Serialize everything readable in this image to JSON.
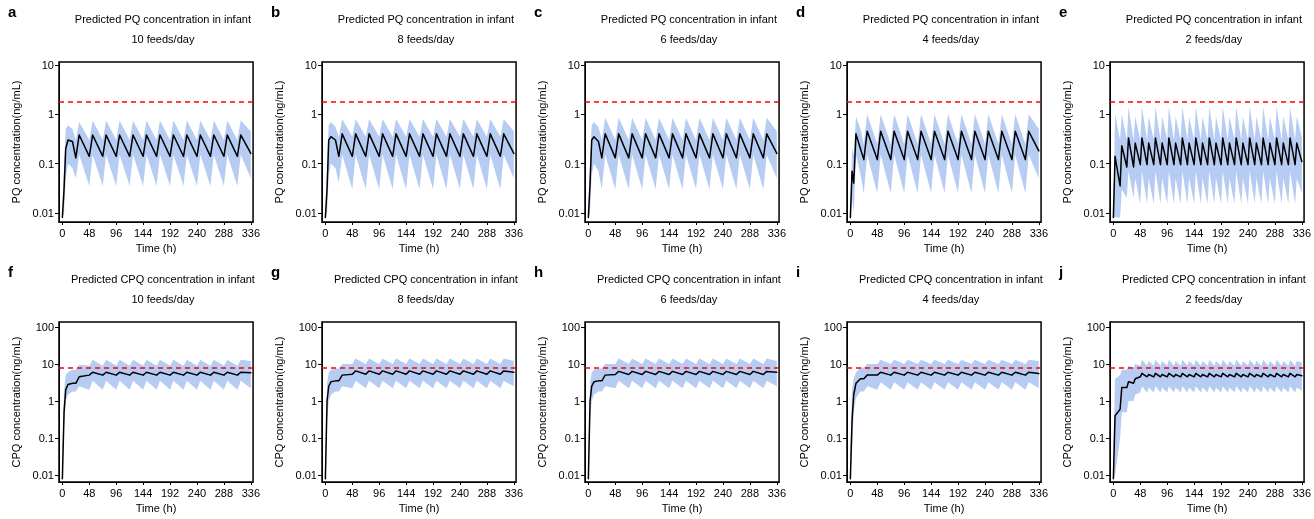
{
  "chart_data": [
    {
      "type": "line",
      "title": "Predicted PQ concentration in infant",
      "subtitle": "10 feeds/day",
      "xlabel": "Time (h)",
      "ylabel": "PQ concentration(ng/mL)",
      "annotations": [
        "a"
      ],
      "log": "y",
      "marker": "none",
      "xlim": [
        -6,
        340
      ],
      "xticks": [
        0,
        48,
        96,
        144,
        192,
        240,
        288,
        336
      ],
      "ylim": [
        0.0065,
        11.5
      ],
      "yticks": [
        0.01,
        0.1,
        1,
        10
      ],
      "ref_lines": [
        {
          "axis": "y",
          "value": 1.8,
          "color": "#ff0000",
          "line_style": "dashed"
        }
      ],
      "x": [
        0,
        3,
        6,
        10,
        18,
        24,
        30,
        48,
        54,
        72,
        78,
        96,
        102,
        120,
        126,
        144,
        150,
        168,
        174,
        192,
        198,
        216,
        222,
        240,
        246,
        264,
        270,
        288,
        294,
        312,
        318,
        336
      ],
      "series": [
        {
          "color": "#000000",
          "values": [
            0.008,
            0.03,
            0.2,
            0.3,
            0.28,
            0.13,
            0.38,
            0.14,
            0.38,
            0.14,
            0.38,
            0.14,
            0.38,
            0.14,
            0.38,
            0.14,
            0.38,
            0.14,
            0.38,
            0.14,
            0.38,
            0.14,
            0.38,
            0.14,
            0.38,
            0.14,
            0.38,
            0.14,
            0.38,
            0.14,
            0.38,
            0.16
          ],
          "upper": [
            0.01,
            0.1,
            0.5,
            0.6,
            0.5,
            0.3,
            0.7,
            0.3,
            0.75,
            0.3,
            0.75,
            0.3,
            0.75,
            0.3,
            0.75,
            0.3,
            0.75,
            0.3,
            0.75,
            0.3,
            0.75,
            0.3,
            0.75,
            0.3,
            0.75,
            0.3,
            0.75,
            0.3,
            0.75,
            0.3,
            0.75,
            0.45
          ],
          "lower": [
            0.008,
            0.01,
            0.05,
            0.1,
            0.08,
            0.05,
            0.15,
            0.035,
            0.15,
            0.035,
            0.15,
            0.035,
            0.15,
            0.035,
            0.15,
            0.035,
            0.15,
            0.035,
            0.15,
            0.035,
            0.15,
            0.035,
            0.15,
            0.035,
            0.15,
            0.035,
            0.15,
            0.035,
            0.15,
            0.035,
            0.15,
            0.05
          ]
        }
      ]
    },
    {
      "type": "line",
      "title": "Predicted PQ concentration in infant",
      "subtitle": "8 feeds/day",
      "xlabel": "Time (h)",
      "ylabel": "PQ concentration(ng/mL)",
      "annotations": [
        "b"
      ],
      "log": "y",
      "marker": "none",
      "xlim": [
        -6,
        340
      ],
      "xticks": [
        0,
        48,
        96,
        144,
        192,
        240,
        288,
        336
      ],
      "ylim": [
        0.0065,
        11.5
      ],
      "yticks": [
        0.01,
        0.1,
        1,
        10
      ],
      "ref_lines": [
        {
          "axis": "y",
          "value": 1.8,
          "color": "#ff0000",
          "line_style": "dashed"
        }
      ],
      "x": [
        0,
        3,
        6,
        10,
        18,
        24,
        30,
        48,
        54,
        72,
        78,
        96,
        102,
        120,
        126,
        144,
        150,
        168,
        174,
        192,
        198,
        216,
        222,
        240,
        246,
        264,
        270,
        288,
        294,
        312,
        318,
        336
      ],
      "series": [
        {
          "color": "#000000",
          "values": [
            0.008,
            0.03,
            0.3,
            0.35,
            0.3,
            0.14,
            0.4,
            0.14,
            0.4,
            0.14,
            0.4,
            0.14,
            0.4,
            0.14,
            0.4,
            0.14,
            0.4,
            0.14,
            0.4,
            0.14,
            0.4,
            0.14,
            0.4,
            0.14,
            0.4,
            0.14,
            0.4,
            0.14,
            0.4,
            0.14,
            0.4,
            0.16
          ],
          "upper": [
            0.01,
            0.1,
            0.6,
            0.7,
            0.55,
            0.35,
            0.8,
            0.35,
            0.8,
            0.35,
            0.8,
            0.35,
            0.8,
            0.35,
            0.8,
            0.35,
            0.8,
            0.35,
            0.8,
            0.35,
            0.8,
            0.35,
            0.8,
            0.35,
            0.8,
            0.35,
            0.8,
            0.35,
            0.8,
            0.35,
            0.8,
            0.45
          ],
          "lower": [
            0.008,
            0.01,
            0.06,
            0.1,
            0.08,
            0.04,
            0.15,
            0.03,
            0.15,
            0.03,
            0.15,
            0.03,
            0.15,
            0.03,
            0.15,
            0.03,
            0.15,
            0.03,
            0.15,
            0.03,
            0.15,
            0.03,
            0.15,
            0.03,
            0.15,
            0.03,
            0.15,
            0.03,
            0.15,
            0.03,
            0.15,
            0.05
          ]
        }
      ]
    },
    {
      "type": "line",
      "title": "Predicted PQ concentration in infant",
      "subtitle": "6 feeds/day",
      "xlabel": "Time (h)",
      "ylabel": "PQ concentration(ng/mL)",
      "annotations": [
        "c"
      ],
      "log": "y",
      "marker": "none",
      "xlim": [
        -6,
        340
      ],
      "xticks": [
        0,
        48,
        96,
        144,
        192,
        240,
        288,
        336
      ],
      "ylim": [
        0.0065,
        11.5
      ],
      "yticks": [
        0.01,
        0.1,
        1,
        10
      ],
      "ref_lines": [
        {
          "axis": "y",
          "value": 1.8,
          "color": "#ff0000",
          "line_style": "dashed"
        }
      ],
      "x": [
        0,
        3,
        6,
        10,
        18,
        24,
        30,
        48,
        54,
        72,
        78,
        96,
        102,
        120,
        126,
        144,
        150,
        168,
        174,
        192,
        198,
        216,
        222,
        240,
        246,
        264,
        270,
        288,
        294,
        312,
        318,
        336
      ],
      "series": [
        {
          "color": "#000000",
          "values": [
            0.008,
            0.04,
            0.3,
            0.35,
            0.28,
            0.13,
            0.4,
            0.13,
            0.4,
            0.13,
            0.4,
            0.13,
            0.4,
            0.13,
            0.4,
            0.13,
            0.4,
            0.13,
            0.4,
            0.13,
            0.4,
            0.13,
            0.4,
            0.13,
            0.4,
            0.13,
            0.4,
            0.13,
            0.4,
            0.13,
            0.4,
            0.16
          ],
          "upper": [
            0.01,
            0.12,
            0.6,
            0.7,
            0.55,
            0.3,
            0.85,
            0.3,
            0.85,
            0.3,
            0.85,
            0.3,
            0.85,
            0.3,
            0.85,
            0.3,
            0.85,
            0.3,
            0.85,
            0.3,
            0.85,
            0.3,
            0.85,
            0.3,
            0.85,
            0.3,
            0.85,
            0.3,
            0.85,
            0.3,
            0.85,
            0.45
          ],
          "lower": [
            0.008,
            0.01,
            0.06,
            0.1,
            0.07,
            0.03,
            0.15,
            0.03,
            0.15,
            0.03,
            0.15,
            0.03,
            0.15,
            0.03,
            0.15,
            0.03,
            0.15,
            0.03,
            0.15,
            0.03,
            0.15,
            0.03,
            0.15,
            0.03,
            0.15,
            0.03,
            0.15,
            0.03,
            0.15,
            0.03,
            0.15,
            0.05
          ]
        }
      ]
    },
    {
      "type": "line",
      "title": "Predicted PQ concentration in infant",
      "subtitle": "4 feeds/day",
      "xlabel": "Time (h)",
      "ylabel": "PQ concentration(ng/mL)",
      "annotations": [
        "d"
      ],
      "log": "y",
      "marker": "none",
      "xlim": [
        -6,
        340
      ],
      "xticks": [
        0,
        48,
        96,
        144,
        192,
        240,
        288,
        336
      ],
      "ylim": [
        0.0065,
        11.5
      ],
      "yticks": [
        0.01,
        0.1,
        1,
        10
      ],
      "ref_lines": [
        {
          "axis": "y",
          "value": 1.8,
          "color": "#ff0000",
          "line_style": "dashed"
        }
      ],
      "x": [
        0,
        3,
        6,
        10,
        18,
        24,
        30,
        48,
        54,
        72,
        78,
        96,
        102,
        120,
        126,
        144,
        150,
        168,
        174,
        192,
        198,
        216,
        222,
        240,
        246,
        264,
        270,
        288,
        294,
        312,
        318,
        336
      ],
      "series": [
        {
          "color": "#000000",
          "values": [
            0.008,
            0.07,
            0.04,
            0.4,
            0.2,
            0.12,
            0.45,
            0.12,
            0.45,
            0.12,
            0.45,
            0.12,
            0.45,
            0.12,
            0.45,
            0.12,
            0.45,
            0.12,
            0.45,
            0.12,
            0.45,
            0.12,
            0.45,
            0.12,
            0.45,
            0.12,
            0.45,
            0.12,
            0.45,
            0.12,
            0.45,
            0.18
          ],
          "upper": [
            0.01,
            0.2,
            0.15,
            0.9,
            0.5,
            0.25,
            1.0,
            0.25,
            1.0,
            0.25,
            1.0,
            0.25,
            1.0,
            0.25,
            1.0,
            0.25,
            1.0,
            0.25,
            1.0,
            0.25,
            1.0,
            0.25,
            1.0,
            0.25,
            1.0,
            0.25,
            1.0,
            0.25,
            1.0,
            0.25,
            1.0,
            0.5
          ],
          "lower": [
            0.008,
            0.02,
            0.01,
            0.15,
            0.06,
            0.025,
            0.15,
            0.025,
            0.15,
            0.025,
            0.15,
            0.025,
            0.15,
            0.025,
            0.15,
            0.025,
            0.15,
            0.025,
            0.15,
            0.025,
            0.15,
            0.025,
            0.15,
            0.025,
            0.15,
            0.025,
            0.15,
            0.025,
            0.15,
            0.025,
            0.15,
            0.05
          ]
        }
      ]
    },
    {
      "type": "line",
      "title": "Predicted PQ concentration in infant",
      "subtitle": "2 feeds/day",
      "xlabel": "Time (h)",
      "ylabel": "PQ concentration(ng/mL)",
      "annotations": [
        "e"
      ],
      "log": "y",
      "marker": "none",
      "xlim": [
        -6,
        340
      ],
      "xticks": [
        0,
        48,
        96,
        144,
        192,
        240,
        288,
        336
      ],
      "ylim": [
        0.0065,
        11.5
      ],
      "yticks": [
        0.01,
        0.1,
        1,
        10
      ],
      "ref_lines": [
        {
          "axis": "y",
          "value": 1.8,
          "color": "#ff0000",
          "line_style": "dashed"
        }
      ],
      "x": [
        0,
        3,
        12,
        15,
        24,
        27,
        36,
        39,
        48,
        51,
        60,
        63,
        72,
        75,
        84,
        87,
        96,
        99,
        108,
        111,
        120,
        123,
        132,
        135,
        144,
        147,
        156,
        159,
        168,
        171,
        180,
        183,
        192,
        195,
        204,
        207,
        216,
        219,
        228,
        231,
        240,
        243,
        252,
        255,
        264,
        267,
        276,
        279,
        288,
        291,
        300,
        303,
        312,
        315,
        324,
        327,
        336
      ],
      "series": [
        {
          "color": "#000000",
          "values": [
            0.008,
            0.14,
            0.035,
            0.23,
            0.085,
            0.33,
            0.085,
            0.26,
            0.095,
            0.33,
            0.095,
            0.26,
            0.095,
            0.33,
            0.095,
            0.26,
            0.095,
            0.33,
            0.095,
            0.26,
            0.095,
            0.33,
            0.095,
            0.26,
            0.095,
            0.33,
            0.095,
            0.26,
            0.095,
            0.33,
            0.095,
            0.26,
            0.095,
            0.33,
            0.095,
            0.26,
            0.095,
            0.33,
            0.095,
            0.26,
            0.095,
            0.33,
            0.095,
            0.26,
            0.095,
            0.33,
            0.095,
            0.26,
            0.095,
            0.33,
            0.095,
            0.26,
            0.095,
            0.33,
            0.095,
            0.26,
            0.11
          ],
          "upper": [
            0.01,
            1.0,
            0.3,
            1.0,
            0.3,
            1.4,
            0.3,
            0.9,
            0.3,
            1.4,
            0.3,
            0.9,
            0.3,
            1.4,
            0.3,
            0.9,
            0.3,
            1.4,
            0.3,
            0.9,
            0.3,
            1.4,
            0.3,
            0.9,
            0.3,
            1.4,
            0.3,
            0.9,
            0.3,
            1.4,
            0.3,
            0.9,
            0.3,
            1.4,
            0.3,
            0.9,
            0.3,
            1.4,
            0.3,
            0.9,
            0.3,
            1.4,
            0.3,
            0.9,
            0.3,
            1.4,
            0.3,
            0.9,
            0.3,
            1.4,
            0.3,
            0.9,
            0.3,
            1.4,
            0.3,
            0.9,
            0.35
          ],
          "lower": [
            0.008,
            0.008,
            0.008,
            0.03,
            0.02,
            0.07,
            0.02,
            0.05,
            0.015,
            0.07,
            0.015,
            0.05,
            0.015,
            0.07,
            0.015,
            0.05,
            0.015,
            0.07,
            0.015,
            0.05,
            0.015,
            0.07,
            0.015,
            0.05,
            0.015,
            0.07,
            0.015,
            0.05,
            0.015,
            0.07,
            0.015,
            0.05,
            0.015,
            0.07,
            0.015,
            0.05,
            0.015,
            0.07,
            0.015,
            0.05,
            0.015,
            0.07,
            0.015,
            0.05,
            0.015,
            0.07,
            0.015,
            0.05,
            0.015,
            0.07,
            0.015,
            0.05,
            0.015,
            0.07,
            0.015,
            0.05,
            0.025
          ]
        }
      ]
    },
    {
      "type": "line",
      "title": "Predicted CPQ concentration in infant",
      "subtitle": "10 feeds/day",
      "xlabel": "Time (h)",
      "ylabel": "CPQ concentration(ng/mL)",
      "annotations": [
        "f"
      ],
      "log": "y",
      "marker": "none",
      "xlim": [
        -6,
        340
      ],
      "xticks": [
        0,
        48,
        96,
        144,
        192,
        240,
        288,
        336
      ],
      "ylim": [
        0.0065,
        136
      ],
      "yticks": [
        0.01,
        0.1,
        1,
        10,
        100
      ],
      "ref_lines": [
        {
          "axis": "y",
          "value": 7.8,
          "color": "#ff0000",
          "line_style": "dashed"
        }
      ],
      "x": [
        0,
        3,
        6,
        10,
        18,
        24,
        30,
        48,
        54,
        72,
        78,
        96,
        102,
        120,
        126,
        144,
        150,
        168,
        174,
        192,
        198,
        216,
        222,
        240,
        246,
        264,
        270,
        288,
        294,
        312,
        318,
        336
      ],
      "series": [
        {
          "color": "#000000",
          "values": [
            0.008,
            0.5,
            2,
            2.8,
            3,
            3,
            4.5,
            5,
            6,
            5,
            6,
            5,
            6,
            5,
            6,
            5,
            6,
            5,
            6,
            5,
            6,
            5,
            6,
            5,
            6,
            5,
            6,
            5,
            6,
            5,
            6,
            5.8
          ],
          "upper": [
            0.05,
            2,
            5,
            6,
            7,
            7,
            9.5,
            9,
            13,
            9,
            13,
            9,
            13,
            9,
            13,
            9,
            13,
            9,
            13,
            9,
            13,
            9,
            13,
            9,
            13,
            9,
            13,
            9,
            13,
            9,
            13,
            12
          ],
          "lower": [
            0.008,
            0.2,
            1,
            1.5,
            1.8,
            1.8,
            2.5,
            2,
            3.5,
            2,
            3.5,
            2,
            3.5,
            2,
            3.5,
            2,
            3.5,
            2,
            3.5,
            2,
            3.5,
            2,
            3.5,
            2,
            3.5,
            2,
            3.5,
            2,
            3.5,
            2,
            3.5,
            2.2
          ]
        }
      ]
    },
    {
      "type": "line",
      "title": "Predicted CPQ concentration in infant",
      "subtitle": "8 feeds/day",
      "xlabel": "Time (h)",
      "ylabel": "CPQ concentration(ng/mL)",
      "annotations": [
        "g"
      ],
      "log": "y",
      "marker": "none",
      "xlim": [
        -6,
        340
      ],
      "xticks": [
        0,
        48,
        96,
        144,
        192,
        240,
        288,
        336
      ],
      "ylim": [
        0.0065,
        136
      ],
      "yticks": [
        0.01,
        0.1,
        1,
        10,
        100
      ],
      "ref_lines": [
        {
          "axis": "y",
          "value": 7.8,
          "color": "#ff0000",
          "line_style": "dashed"
        }
      ],
      "x": [
        0,
        3,
        6,
        10,
        18,
        24,
        30,
        48,
        54,
        72,
        78,
        96,
        102,
        120,
        126,
        144,
        150,
        168,
        174,
        192,
        198,
        216,
        222,
        240,
        246,
        264,
        270,
        288,
        294,
        312,
        318,
        336
      ],
      "series": [
        {
          "color": "#000000",
          "values": [
            0.008,
            1,
            2.5,
            3.3,
            3.5,
            3.5,
            5,
            5.3,
            6.5,
            5.3,
            6.5,
            5.3,
            6.5,
            5.3,
            6.5,
            5.3,
            6.5,
            5.3,
            6.5,
            5.3,
            6.5,
            5.3,
            6.5,
            5.3,
            6.5,
            5.3,
            6.5,
            5.3,
            6.5,
            5.3,
            6.5,
            6
          ],
          "upper": [
            0.05,
            3,
            6,
            7,
            7.5,
            7.5,
            10,
            10,
            14,
            10,
            14,
            10,
            14,
            10,
            14,
            10,
            14,
            10,
            14,
            10,
            14,
            10,
            14,
            10,
            14,
            10,
            14,
            10,
            14,
            10,
            14,
            12
          ],
          "lower": [
            0.008,
            0.3,
            1,
            1.5,
            1.8,
            1.8,
            2.5,
            2.2,
            3.5,
            2.2,
            3.5,
            2.2,
            3.5,
            2.2,
            3.5,
            2.2,
            3.5,
            2.2,
            3.5,
            2.2,
            3.5,
            2.2,
            3.5,
            2.2,
            3.5,
            2.2,
            3.5,
            2.2,
            3.5,
            2.2,
            3.5,
            2.5
          ]
        }
      ]
    },
    {
      "type": "line",
      "title": "Predicted CPQ concentration in infant",
      "subtitle": "6 feeds/day",
      "xlabel": "Time (h)",
      "ylabel": "CPQ concentration(ng/mL)",
      "annotations": [
        "h"
      ],
      "log": "y",
      "marker": "none",
      "xlim": [
        -6,
        340
      ],
      "xticks": [
        0,
        48,
        96,
        144,
        192,
        240,
        288,
        336
      ],
      "ylim": [
        0.0065,
        136
      ],
      "yticks": [
        0.01,
        0.1,
        1,
        10,
        100
      ],
      "ref_lines": [
        {
          "axis": "y",
          "value": 7.8,
          "color": "#ff0000",
          "line_style": "dashed"
        }
      ],
      "x": [
        0,
        3,
        6,
        10,
        18,
        24,
        30,
        48,
        54,
        72,
        78,
        96,
        102,
        120,
        126,
        144,
        150,
        168,
        174,
        192,
        198,
        216,
        222,
        240,
        246,
        264,
        270,
        288,
        294,
        312,
        318,
        336
      ],
      "series": [
        {
          "color": "#000000",
          "values": [
            0.008,
            1,
            2.5,
            3.3,
            3.5,
            3.5,
            5,
            5.2,
            6.3,
            5.2,
            6.3,
            5.2,
            6.3,
            5.2,
            6.3,
            5.2,
            6.3,
            5.2,
            6.3,
            5.2,
            6.3,
            5.2,
            6.3,
            5.2,
            6.3,
            5.2,
            6.3,
            5.2,
            6.3,
            5.2,
            6.3,
            6
          ],
          "upper": [
            0.05,
            3,
            6,
            7,
            7.5,
            7.5,
            10,
            10,
            14,
            10,
            14,
            10,
            14,
            10,
            14,
            10,
            14,
            10,
            14,
            10,
            14,
            10,
            14,
            10,
            14,
            10,
            14,
            10,
            14,
            10,
            14,
            12
          ],
          "lower": [
            0.008,
            0.3,
            1,
            1.5,
            1.8,
            1.8,
            2.5,
            2.2,
            3.5,
            2.2,
            3.5,
            2.2,
            3.5,
            2.2,
            3.5,
            2.2,
            3.5,
            2.2,
            3.5,
            2.2,
            3.5,
            2.2,
            3.5,
            2.2,
            3.5,
            2.2,
            3.5,
            2.2,
            3.5,
            2.2,
            3.5,
            2.5
          ]
        }
      ]
    },
    {
      "type": "line",
      "title": "Predicted CPQ concentration in infant",
      "subtitle": "4 feeds/day",
      "xlabel": "Time (h)",
      "ylabel": "CPQ concentration(ng/mL)",
      "annotations": [
        "i"
      ],
      "log": "y",
      "marker": "none",
      "xlim": [
        -6,
        340
      ],
      "xticks": [
        0,
        48,
        96,
        144,
        192,
        240,
        288,
        336
      ],
      "ylim": [
        0.0065,
        136
      ],
      "yticks": [
        0.01,
        0.1,
        1,
        10,
        100
      ],
      "ref_lines": [
        {
          "axis": "y",
          "value": 7.8,
          "color": "#ff0000",
          "line_style": "dashed"
        }
      ],
      "x": [
        0,
        3,
        6,
        10,
        18,
        24,
        30,
        48,
        54,
        72,
        78,
        96,
        102,
        120,
        126,
        144,
        150,
        168,
        174,
        192,
        198,
        216,
        222,
        240,
        246,
        264,
        270,
        288,
        294,
        312,
        318,
        336
      ],
      "series": [
        {
          "color": "#000000",
          "values": [
            0.008,
            0.3,
            1.5,
            3,
            4,
            4,
            5,
            5,
            6,
            5,
            6,
            5,
            6,
            5,
            6,
            5,
            6,
            5,
            6,
            5,
            6,
            5,
            6,
            5,
            6,
            5,
            6,
            5,
            6,
            5,
            6,
            5.5
          ],
          "upper": [
            0.05,
            2,
            4,
            6,
            8,
            8,
            10,
            10,
            13,
            10,
            13,
            10,
            13,
            10,
            13,
            10,
            13,
            10,
            13,
            10,
            13,
            10,
            13,
            10,
            13,
            10,
            13,
            10,
            13,
            10,
            13,
            12
          ],
          "lower": [
            0.008,
            0.05,
            0.5,
            1.2,
            1.8,
            1.8,
            2.5,
            2,
            3.2,
            2,
            3.2,
            2,
            3.2,
            2,
            3.2,
            2,
            3.2,
            2,
            3.2,
            2,
            3.2,
            2,
            3.2,
            2,
            3.2,
            2,
            3.2,
            2,
            3.2,
            2,
            3.2,
            2.2
          ]
        }
      ]
    },
    {
      "type": "line",
      "title": "Predicted CPQ concentration in infant",
      "subtitle": "2 feeds/day",
      "xlabel": "Time (h)",
      "ylabel": "CPQ concentration(ng/mL)",
      "annotations": [
        "j"
      ],
      "log": "y",
      "marker": "none",
      "xlim": [
        -6,
        340
      ],
      "xticks": [
        0,
        48,
        96,
        144,
        192,
        240,
        288,
        336
      ],
      "ylim": [
        0.0065,
        136
      ],
      "yticks": [
        0.01,
        0.1,
        1,
        10,
        100
      ],
      "ref_lines": [
        {
          "axis": "y",
          "value": 7.8,
          "color": "#ff0000",
          "line_style": "dashed"
        }
      ],
      "x": [
        0,
        3,
        12,
        15,
        24,
        27,
        36,
        39,
        48,
        51,
        60,
        63,
        72,
        75,
        84,
        87,
        96,
        99,
        108,
        111,
        120,
        123,
        132,
        135,
        144,
        147,
        156,
        159,
        168,
        171,
        180,
        183,
        192,
        195,
        204,
        207,
        216,
        219,
        228,
        231,
        240,
        243,
        252,
        255,
        264,
        267,
        276,
        279,
        288,
        291,
        300,
        303,
        312,
        315,
        324,
        327,
        336
      ],
      "series": [
        {
          "color": "#000000",
          "values": [
            0.008,
            0.4,
            0.6,
            2.3,
            2.3,
            3.3,
            3.0,
            4.0,
            4.5,
            5.6,
            4.5,
            5.2,
            4.5,
            5.6,
            4.5,
            5.2,
            4.5,
            5.6,
            4.5,
            5.2,
            4.5,
            5.6,
            4.5,
            5.2,
            4.5,
            5.6,
            4.5,
            5.2,
            4.5,
            5.6,
            4.5,
            5.2,
            4.5,
            5.6,
            4.5,
            5.2,
            4.5,
            5.6,
            4.5,
            5.2,
            4.5,
            5.6,
            4.5,
            5.2,
            4.5,
            5.6,
            4.5,
            5.2,
            4.5,
            5.6,
            4.5,
            5.2,
            4.5,
            5.6,
            4.5,
            5.2,
            4.8
          ],
          "upper": [
            0.05,
            4,
            5,
            7,
            7,
            9,
            8,
            10,
            9,
            13,
            9,
            12,
            9,
            13,
            9,
            12,
            9,
            13,
            9,
            12,
            9,
            13,
            9,
            12,
            9,
            13,
            9,
            12,
            9,
            13,
            9,
            12,
            9,
            13,
            9,
            12,
            9,
            13,
            9,
            12,
            9,
            13,
            9,
            12,
            9,
            13,
            9,
            12,
            9,
            13,
            9,
            12,
            9,
            13,
            9,
            12,
            11
          ],
          "lower": [
            0.008,
            0.01,
            0.1,
            0.5,
            0.5,
            1,
            1,
            1.5,
            1.7,
            2.5,
            1.7,
            2.3,
            1.7,
            2.5,
            1.7,
            2.3,
            1.7,
            2.5,
            1.7,
            2.3,
            1.7,
            2.5,
            1.7,
            2.3,
            1.7,
            2.5,
            1.7,
            2.3,
            1.7,
            2.5,
            1.7,
            2.3,
            1.7,
            2.5,
            1.7,
            2.3,
            1.7,
            2.5,
            1.7,
            2.3,
            1.7,
            2.5,
            1.7,
            2.3,
            1.7,
            2.5,
            1.7,
            2.3,
            1.7,
            2.5,
            1.7,
            2.3,
            1.7,
            2.5,
            1.7,
            2.3,
            1.9
          ]
        }
      ]
    }
  ]
}
